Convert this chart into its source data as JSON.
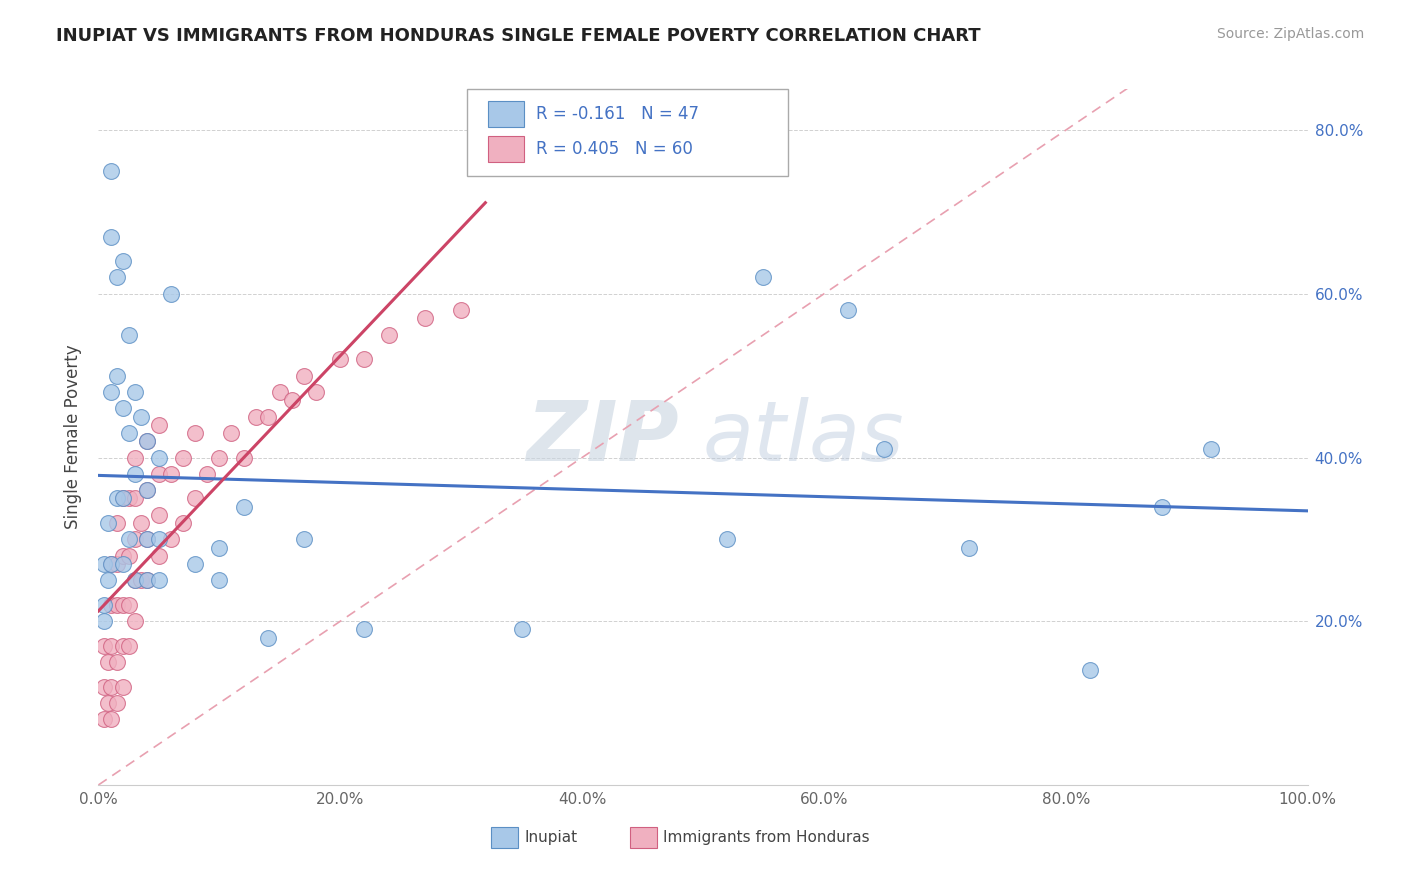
{
  "title": "INUPIAT VS IMMIGRANTS FROM HONDURAS SINGLE FEMALE POVERTY CORRELATION CHART",
  "source": "Source: ZipAtlas.com",
  "ylabel": "Single Female Poverty",
  "xlim": [
    0.0,
    1.0
  ],
  "ylim": [
    0.0,
    0.85
  ],
  "xticks": [
    0.0,
    0.2,
    0.4,
    0.6,
    0.8,
    1.0
  ],
  "xticklabels": [
    "0.0%",
    "20.0%",
    "40.0%",
    "60.0%",
    "80.0%",
    "100.0%"
  ],
  "yticks": [
    0.2,
    0.4,
    0.6,
    0.8
  ],
  "yticklabels": [
    "20.0%",
    "40.0%",
    "60.0%",
    "80.0%"
  ],
  "color_inupiat_fill": "#A8C8E8",
  "color_inupiat_edge": "#5B8FC4",
  "color_honduras_fill": "#F0B0C0",
  "color_honduras_edge": "#D06080",
  "color_inupiat_line": "#4472C4",
  "color_honduras_line": "#CC4466",
  "color_diagonal": "#E8A0B0",
  "watermark_zip": "ZIP",
  "watermark_atlas": "atlas",
  "inupiat_x": [
    0.005,
    0.005,
    0.005,
    0.008,
    0.008,
    0.01,
    0.01,
    0.01,
    0.01,
    0.015,
    0.015,
    0.015,
    0.02,
    0.02,
    0.02,
    0.02,
    0.025,
    0.025,
    0.025,
    0.03,
    0.03,
    0.03,
    0.035,
    0.04,
    0.04,
    0.04,
    0.04,
    0.05,
    0.05,
    0.05,
    0.06,
    0.08,
    0.1,
    0.1,
    0.12,
    0.14,
    0.17,
    0.22,
    0.35,
    0.52,
    0.55,
    0.62,
    0.65,
    0.72,
    0.82,
    0.88,
    0.92
  ],
  "inupiat_y": [
    0.27,
    0.22,
    0.2,
    0.32,
    0.25,
    0.75,
    0.67,
    0.48,
    0.27,
    0.62,
    0.5,
    0.35,
    0.64,
    0.46,
    0.35,
    0.27,
    0.55,
    0.43,
    0.3,
    0.48,
    0.38,
    0.25,
    0.45,
    0.42,
    0.36,
    0.3,
    0.25,
    0.4,
    0.3,
    0.25,
    0.6,
    0.27,
    0.29,
    0.25,
    0.34,
    0.18,
    0.3,
    0.19,
    0.19,
    0.3,
    0.62,
    0.58,
    0.41,
    0.29,
    0.14,
    0.34,
    0.41
  ],
  "honduras_x": [
    0.005,
    0.005,
    0.005,
    0.008,
    0.008,
    0.01,
    0.01,
    0.01,
    0.01,
    0.01,
    0.015,
    0.015,
    0.015,
    0.015,
    0.015,
    0.02,
    0.02,
    0.02,
    0.02,
    0.02,
    0.025,
    0.025,
    0.025,
    0.025,
    0.03,
    0.03,
    0.03,
    0.03,
    0.03,
    0.035,
    0.035,
    0.04,
    0.04,
    0.04,
    0.04,
    0.05,
    0.05,
    0.05,
    0.05,
    0.06,
    0.06,
    0.07,
    0.07,
    0.08,
    0.08,
    0.09,
    0.1,
    0.11,
    0.12,
    0.13,
    0.14,
    0.15,
    0.16,
    0.17,
    0.18,
    0.2,
    0.22,
    0.24,
    0.27,
    0.3
  ],
  "honduras_y": [
    0.08,
    0.12,
    0.17,
    0.1,
    0.15,
    0.08,
    0.12,
    0.17,
    0.22,
    0.27,
    0.1,
    0.15,
    0.22,
    0.27,
    0.32,
    0.12,
    0.17,
    0.22,
    0.28,
    0.35,
    0.17,
    0.22,
    0.28,
    0.35,
    0.2,
    0.25,
    0.3,
    0.35,
    0.4,
    0.25,
    0.32,
    0.25,
    0.3,
    0.36,
    0.42,
    0.28,
    0.33,
    0.38,
    0.44,
    0.3,
    0.38,
    0.32,
    0.4,
    0.35,
    0.43,
    0.38,
    0.4,
    0.43,
    0.4,
    0.45,
    0.45,
    0.48,
    0.47,
    0.5,
    0.48,
    0.52,
    0.52,
    0.55,
    0.57,
    0.58
  ]
}
